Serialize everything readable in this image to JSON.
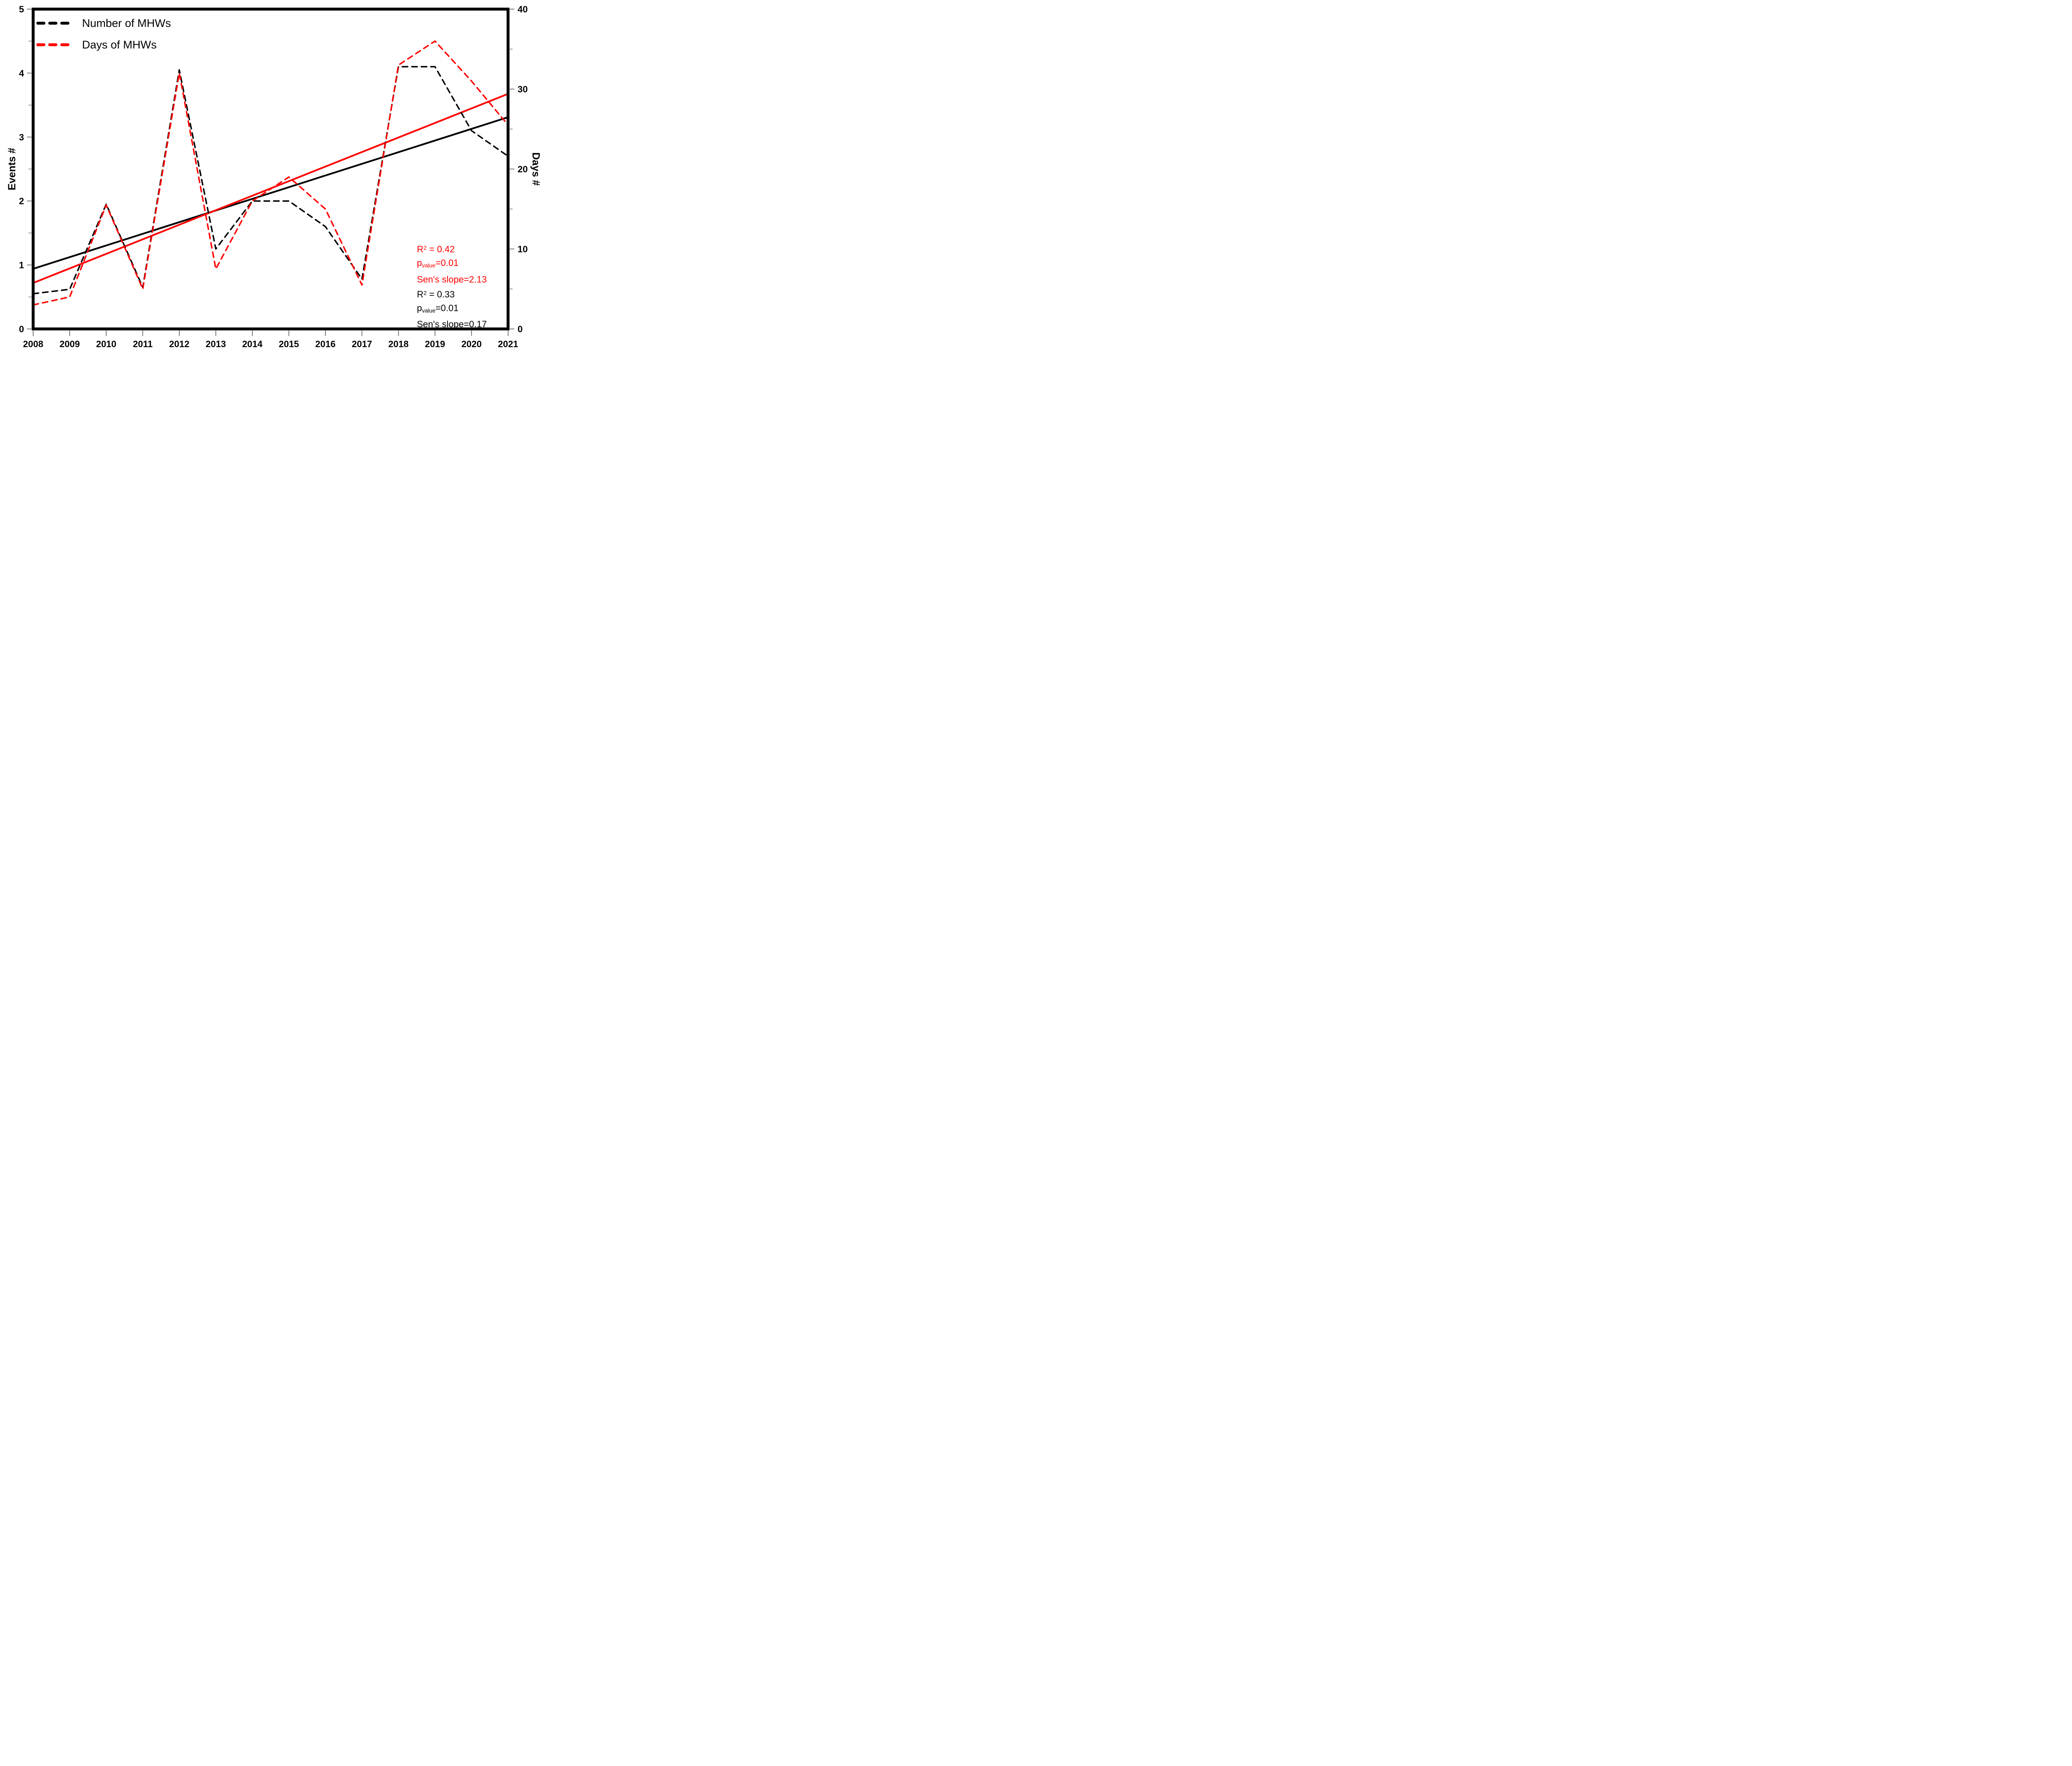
{
  "chart_data": {
    "type": "line",
    "x": [
      2008,
      2009,
      2010,
      2011,
      2012,
      2013,
      2014,
      2015,
      2016,
      2017,
      2018,
      2019,
      2020,
      2021
    ],
    "x_tick_labels": [
      "2008",
      "2009",
      "2010",
      "2011",
      "2012",
      "2013",
      "2014",
      "2015",
      "2016",
      "2017",
      "2018",
      "2019",
      "2020",
      "2021"
    ],
    "left_axis": {
      "label": "Events #",
      "min": 0,
      "max": 5,
      "major_ticks": [
        0,
        1,
        2,
        3,
        4,
        5
      ],
      "minor_ticks": [
        0.5,
        1.5,
        2.5,
        3.5,
        4.5
      ]
    },
    "right_axis": {
      "label": "Days #",
      "min": 0,
      "max": 40,
      "major_ticks": [
        0,
        10,
        20,
        30,
        40
      ],
      "minor_ticks": [
        5,
        15,
        25,
        35
      ]
    },
    "grid": false,
    "legend_position": "top-left",
    "series": [
      {
        "name": "Number of MHWs",
        "axis": "left",
        "color": "#000000",
        "line_style": "dashed",
        "values": [
          0.55,
          0.62,
          1.95,
          0.65,
          4.05,
          1.25,
          2.0,
          2.0,
          1.6,
          0.78,
          4.1,
          4.1,
          3.1,
          2.7
        ]
      },
      {
        "name": "Days of MHWs",
        "axis": "right",
        "color": "#ff0000",
        "line_style": "dashed",
        "values": [
          3,
          4,
          15.5,
          5,
          32,
          7.5,
          16,
          19,
          15,
          5.5,
          33,
          36,
          31,
          25.5
        ]
      }
    ],
    "trend_lines": [
      {
        "name": "Number of MHWs trend",
        "axis": "left",
        "color": "#000000",
        "style": "solid",
        "start_year": 2008,
        "start_value": 0.94,
        "end_year": 2021,
        "end_value": 3.31
      },
      {
        "name": "Days of MHWs trend",
        "axis": "right",
        "color": "#ff0000",
        "style": "solid",
        "start_year": 2008,
        "start_value": 5.75,
        "end_year": 2021,
        "end_value": 29.4
      }
    ]
  },
  "stats": {
    "red": {
      "r2_base": "R",
      "r2_sup": "2",
      "r2_rest": " = 0.42",
      "p_base": "p",
      "p_sub": "value",
      "p_rest": "=0.01",
      "slope": "Sen's slope=2.13"
    },
    "black": {
      "r2_base": "R",
      "r2_sup": "2",
      "r2_rest": " = 0.33",
      "p_base": "p",
      "p_sub": "value",
      "p_rest": "=0.01",
      "slope": "Sen's slope=0.17"
    }
  }
}
